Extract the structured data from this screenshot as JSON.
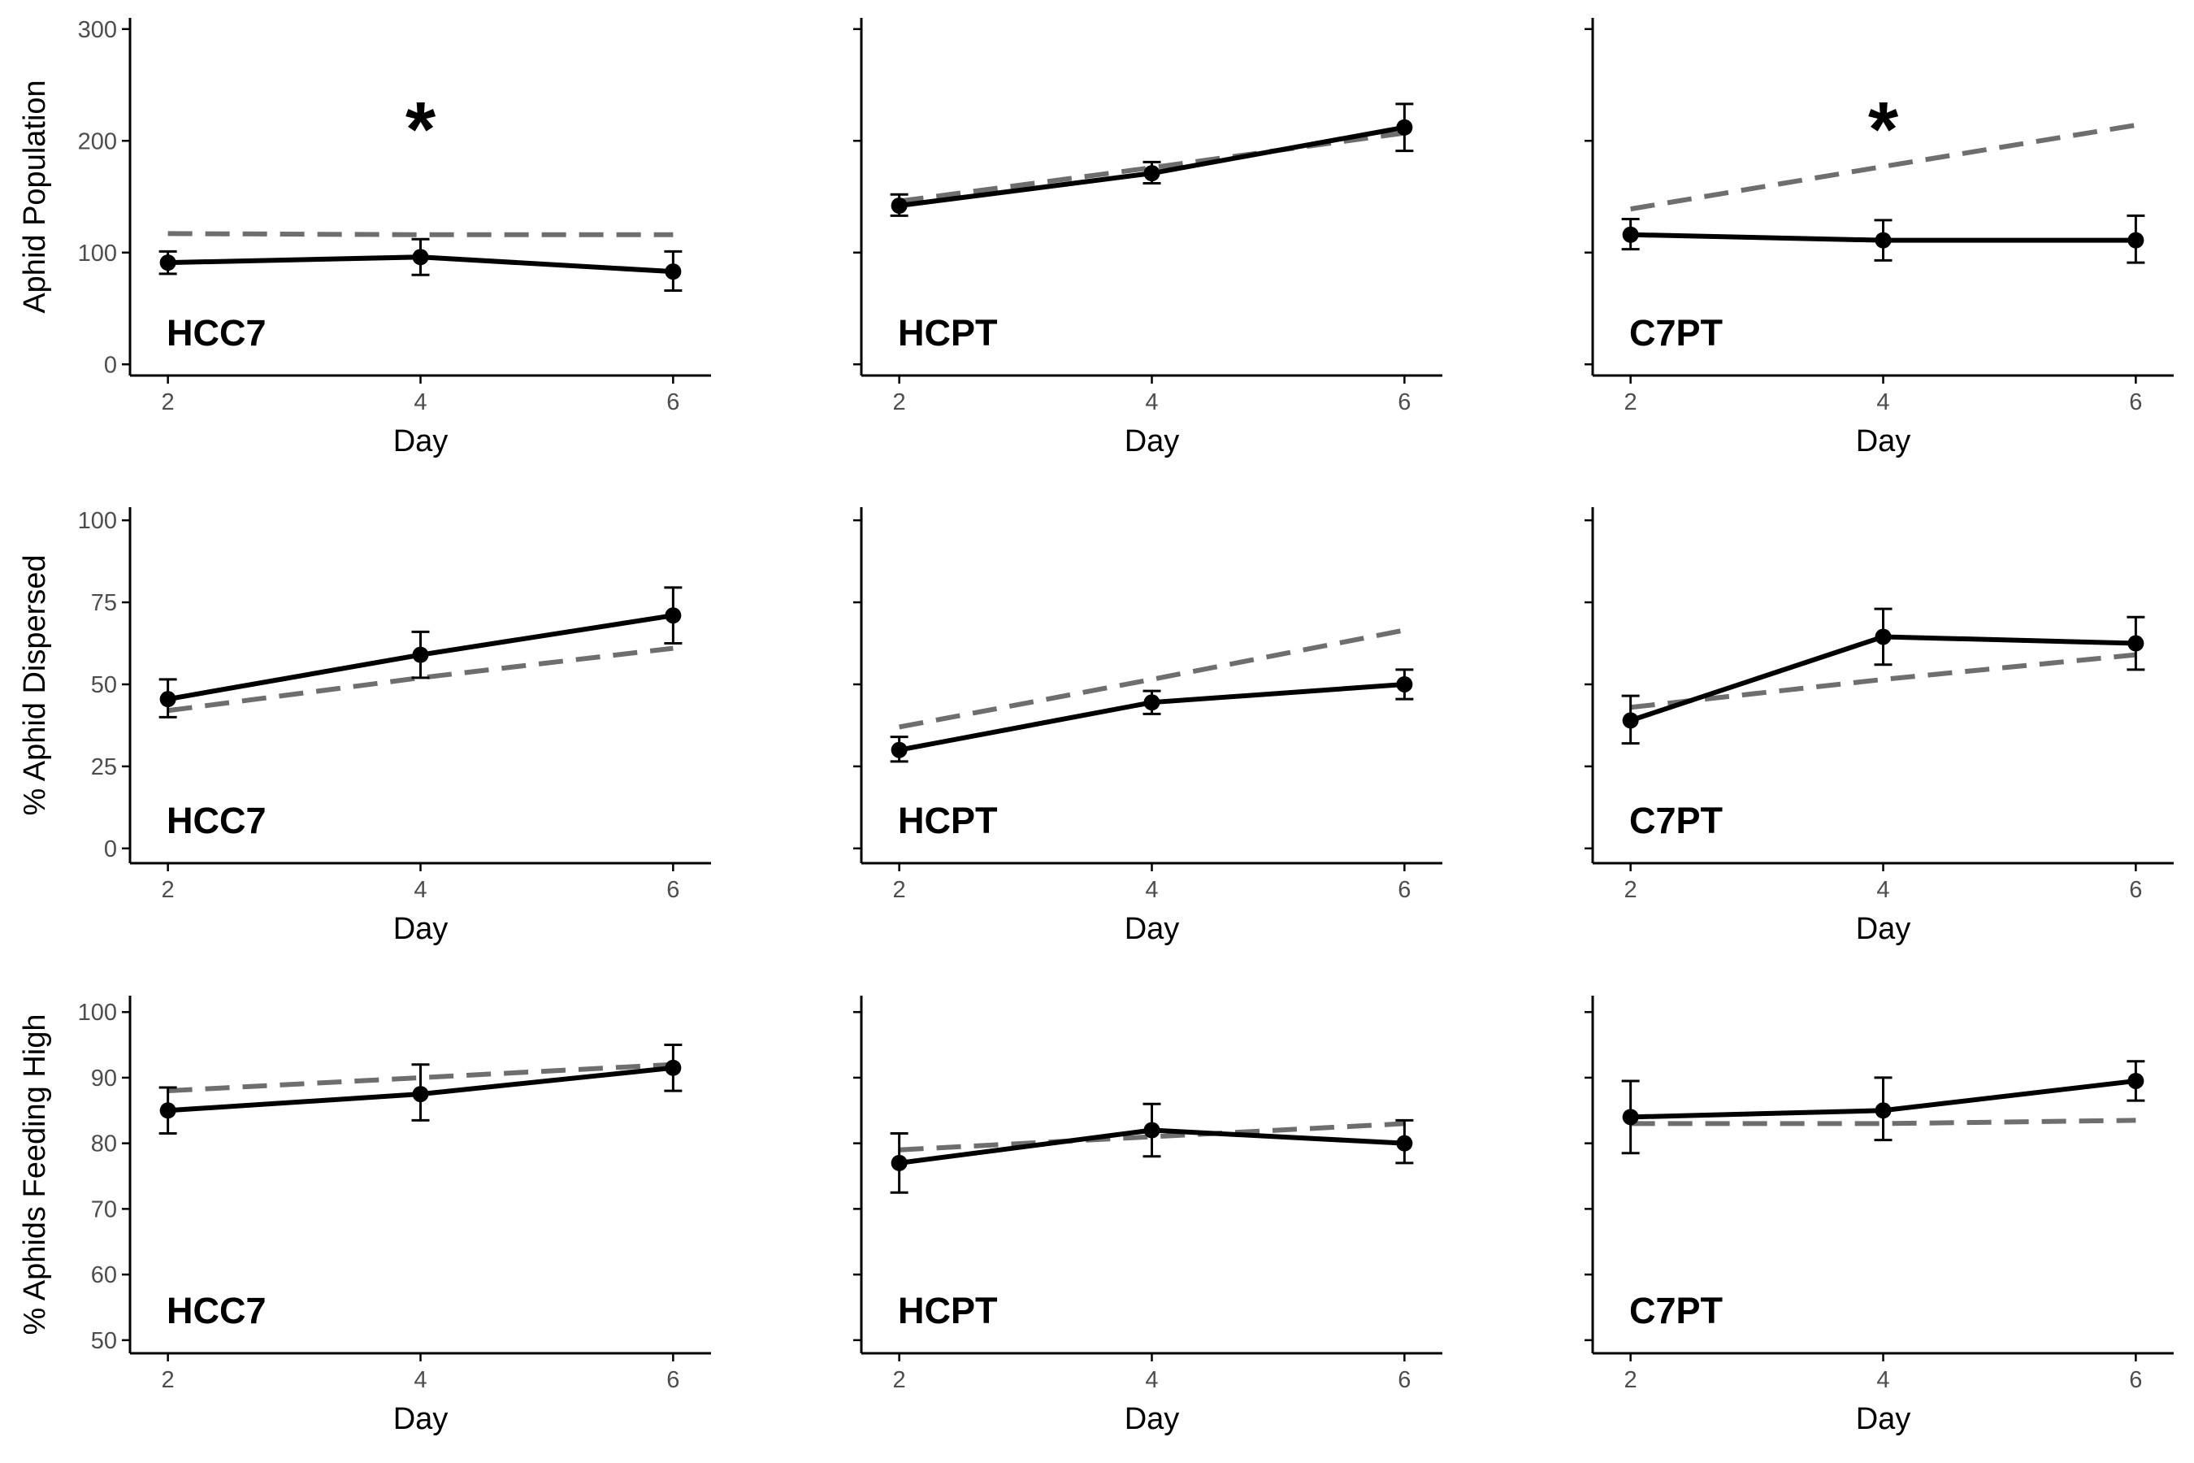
{
  "chart_data": [
    {
      "type": "line",
      "row": 0,
      "col": 0,
      "panel_label": "HCC7",
      "xlabel": "Day",
      "ylabel": "Aphid Population",
      "x": [
        2,
        4,
        6
      ],
      "xlim": [
        1.7,
        6.3
      ],
      "ylim": [
        -10,
        310
      ],
      "yticks": [
        0,
        100,
        200,
        300
      ],
      "show_ytick_labels": true,
      "series": [
        {
          "style": "observed",
          "values": [
            91,
            96,
            83
          ],
          "err_low": [
            81,
            80,
            66
          ],
          "err_high": [
            101,
            112,
            101
          ]
        },
        {
          "style": "expected",
          "values": [
            117,
            116,
            116
          ]
        }
      ],
      "annotations": [
        {
          "text": "*",
          "x": 4
        }
      ]
    },
    {
      "type": "line",
      "row": 0,
      "col": 1,
      "panel_label": "HCPT",
      "xlabel": "Day",
      "ylabel": "",
      "x": [
        2,
        4,
        6
      ],
      "xlim": [
        1.7,
        6.3
      ],
      "ylim": [
        -10,
        310
      ],
      "yticks": [
        0,
        100,
        200,
        300
      ],
      "show_ytick_labels": false,
      "series": [
        {
          "style": "observed",
          "values": [
            142,
            171,
            212
          ],
          "err_low": [
            133,
            162,
            191
          ],
          "err_high": [
            152,
            181,
            233
          ]
        },
        {
          "style": "expected",
          "values": [
            146,
            176,
            207
          ]
        }
      ],
      "annotations": []
    },
    {
      "type": "line",
      "row": 0,
      "col": 2,
      "panel_label": "C7PT",
      "xlabel": "Day",
      "ylabel": "",
      "x": [
        2,
        4,
        6
      ],
      "xlim": [
        1.7,
        6.3
      ],
      "ylim": [
        -10,
        310
      ],
      "yticks": [
        0,
        100,
        200,
        300
      ],
      "show_ytick_labels": false,
      "series": [
        {
          "style": "observed",
          "values": [
            116,
            111,
            111
          ],
          "err_low": [
            103,
            93,
            91
          ],
          "err_high": [
            130,
            129,
            133
          ]
        },
        {
          "style": "expected",
          "values": [
            139,
            177,
            214
          ]
        }
      ],
      "annotations": [
        {
          "text": "*",
          "x": 4
        }
      ]
    },
    {
      "type": "line",
      "row": 1,
      "col": 0,
      "panel_label": "HCC7",
      "xlabel": "Day",
      "ylabel": "% Aphid Dispersed",
      "x": [
        2,
        4,
        6
      ],
      "xlim": [
        1.7,
        6.3
      ],
      "ylim": [
        -4.5,
        104
      ],
      "yticks": [
        0,
        25,
        50,
        75,
        100
      ],
      "show_ytick_labels": true,
      "series": [
        {
          "style": "observed",
          "values": [
            45.5,
            59,
            71
          ],
          "err_low": [
            40,
            52,
            62.5
          ],
          "err_high": [
            51.5,
            66,
            79.5
          ]
        },
        {
          "style": "expected",
          "values": [
            42,
            52,
            61
          ]
        }
      ],
      "annotations": []
    },
    {
      "type": "line",
      "row": 1,
      "col": 1,
      "panel_label": "HCPT",
      "xlabel": "Day",
      "ylabel": "",
      "x": [
        2,
        4,
        6
      ],
      "xlim": [
        1.7,
        6.3
      ],
      "ylim": [
        -4.5,
        104
      ],
      "yticks": [
        0,
        25,
        50,
        75,
        100
      ],
      "show_ytick_labels": false,
      "series": [
        {
          "style": "observed",
          "values": [
            30,
            44.5,
            50
          ],
          "err_low": [
            26.5,
            41,
            45.5
          ],
          "err_high": [
            34,
            48,
            54.5
          ]
        },
        {
          "style": "expected",
          "values": [
            37,
            51.5,
            66.5
          ]
        }
      ],
      "annotations": []
    },
    {
      "type": "line",
      "row": 1,
      "col": 2,
      "panel_label": "C7PT",
      "xlabel": "Day",
      "ylabel": "",
      "x": [
        2,
        4,
        6
      ],
      "xlim": [
        1.7,
        6.3
      ],
      "ylim": [
        -4.5,
        104
      ],
      "yticks": [
        0,
        25,
        50,
        75,
        100
      ],
      "show_ytick_labels": false,
      "series": [
        {
          "style": "observed",
          "values": [
            39,
            64.5,
            62.5
          ],
          "err_low": [
            32,
            56,
            54.5
          ],
          "err_high": [
            46.5,
            73,
            70.5
          ]
        },
        {
          "style": "expected",
          "values": [
            43,
            51.5,
            59
          ]
        }
      ],
      "annotations": []
    },
    {
      "type": "line",
      "row": 2,
      "col": 0,
      "panel_label": "HCC7",
      "xlabel": "Day",
      "ylabel": "% Aphids Feeding High",
      "x": [
        2,
        4,
        6
      ],
      "xlim": [
        1.7,
        6.3
      ],
      "ylim": [
        48,
        102.5
      ],
      "yticks": [
        50,
        60,
        70,
        80,
        90,
        100
      ],
      "show_ytick_labels": true,
      "series": [
        {
          "style": "observed",
          "values": [
            85,
            87.5,
            91.5
          ],
          "err_low": [
            81.5,
            83.5,
            88
          ],
          "err_high": [
            88.5,
            92,
            95
          ]
        },
        {
          "style": "expected",
          "values": [
            88,
            90,
            92
          ]
        }
      ],
      "annotations": []
    },
    {
      "type": "line",
      "row": 2,
      "col": 1,
      "panel_label": "HCPT",
      "xlabel": "Day",
      "ylabel": "",
      "x": [
        2,
        4,
        6
      ],
      "xlim": [
        1.7,
        6.3
      ],
      "ylim": [
        48,
        102.5
      ],
      "yticks": [
        50,
        60,
        70,
        80,
        90,
        100
      ],
      "show_ytick_labels": false,
      "series": [
        {
          "style": "observed",
          "values": [
            77,
            82,
            80
          ],
          "err_low": [
            72.5,
            78,
            77
          ],
          "err_high": [
            81.5,
            86,
            83.5
          ]
        },
        {
          "style": "expected",
          "values": [
            79,
            81,
            83
          ]
        }
      ],
      "annotations": []
    },
    {
      "type": "line",
      "row": 2,
      "col": 2,
      "panel_label": "C7PT",
      "xlabel": "Day",
      "ylabel": "",
      "x": [
        2,
        4,
        6
      ],
      "xlim": [
        1.7,
        6.3
      ],
      "ylim": [
        48,
        102.5
      ],
      "yticks": [
        50,
        60,
        70,
        80,
        90,
        100
      ],
      "show_ytick_labels": false,
      "series": [
        {
          "style": "observed",
          "values": [
            84,
            85,
            89.5
          ],
          "err_low": [
            78.5,
            80.5,
            86.5
          ],
          "err_high": [
            89.5,
            90,
            92.5
          ]
        },
        {
          "style": "expected",
          "values": [
            83,
            83,
            83.5
          ]
        }
      ],
      "annotations": []
    }
  ],
  "colors": {
    "observed": "#000000",
    "expected": "#6e6e6e",
    "axis": "#000000",
    "tick_text": "#4d4d4d"
  },
  "grid": false,
  "legend": "none"
}
